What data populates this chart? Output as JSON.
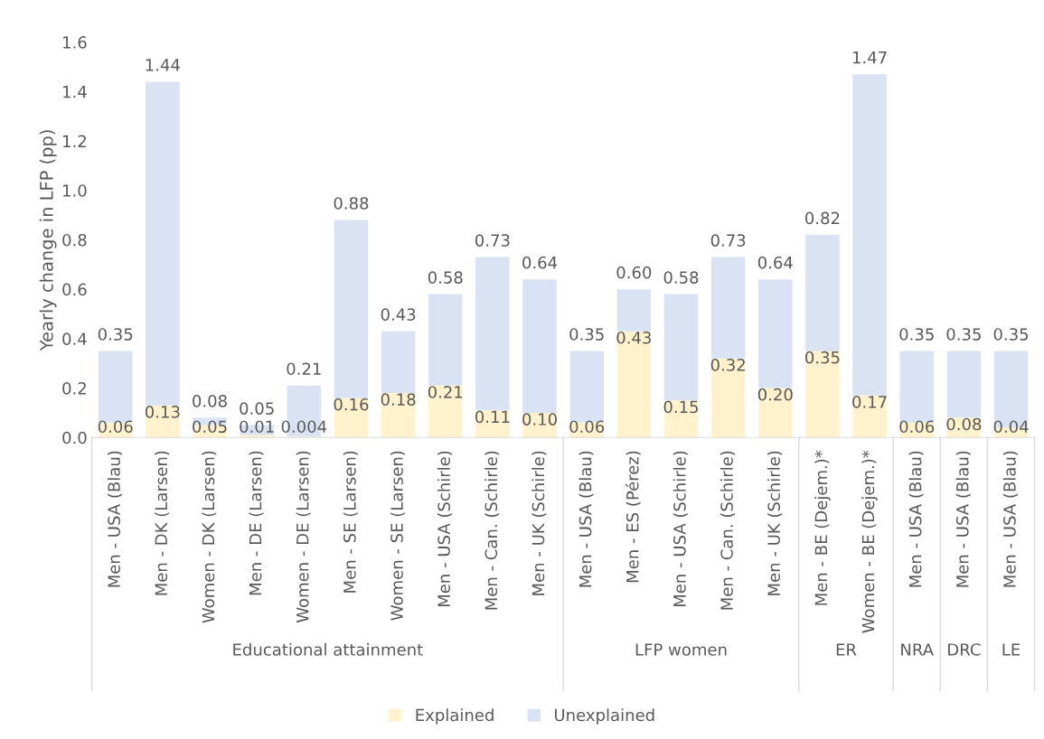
{
  "chart_data": {
    "type": "bar",
    "stacked": true,
    "ylabel": "Yearly change in LFP (pp)",
    "categories": [
      "Men - USA (Blau)",
      "Men - DK (Larsen)",
      "Women - DK (Larsen)",
      "Men - DE (Larsen)",
      "Women - DE (Larsen)",
      "Men - SE (Larsen)",
      "Women - SE (Larsen)",
      "Men - USA (Schirle)",
      "Men - Can. (Schirle)",
      "Men - UK (Schirle)",
      "Men - USA (Blau)",
      "Men - ES (Pérez)",
      "Men - USA (Schirle)",
      "Men - Can. (Schirle)",
      "Men - UK (Schirle)",
      "Men - BE (Dejem.)*",
      "Women - BE (Dejem.)*",
      "Men - USA (Blau)",
      "Men - USA (Blau)",
      "Men - USA (Blau)"
    ],
    "series": [
      {
        "name": "Explained",
        "color": "#fff2cc",
        "values": [
          0.06,
          0.13,
          0.05,
          0.01,
          0.004,
          0.16,
          0.18,
          0.21,
          0.11,
          0.1,
          0.06,
          0.43,
          0.15,
          0.32,
          0.2,
          0.35,
          0.17,
          0.06,
          0.08,
          0.04
        ],
        "value_labels": [
          "0.06",
          "0.13",
          "0.05",
          "0.01",
          "0.004",
          "0.16",
          "0.18",
          "0.21",
          "0.11",
          "0.10",
          "0.06",
          "0.43",
          "0.15",
          "0.32",
          "0.20",
          "0.35",
          "0.17",
          "0.06",
          "0.08",
          "0.04"
        ]
      },
      {
        "name": "Unexplained",
        "color": "#dae3f3",
        "values": [
          0.29,
          1.31,
          0.03,
          0.04,
          0.206,
          0.72,
          0.25,
          0.37,
          0.62,
          0.54,
          0.29,
          0.17,
          0.43,
          0.41,
          0.44,
          0.47,
          1.3,
          0.29,
          0.27,
          0.31
        ]
      }
    ],
    "totals": [
      "0.35",
      "1.44",
      "0.08",
      "0.05",
      "0.21",
      "0.88",
      "0.43",
      "0.58",
      "0.73",
      "0.64",
      "0.35",
      "0.60",
      "0.58",
      "0.73",
      "0.64",
      "0.82",
      "1.47",
      "0.35",
      "0.35",
      "0.35"
    ],
    "annotations": [
      "Educational attainment",
      "LFP women",
      "ER",
      "NRA",
      "DRC",
      "LE"
    ],
    "ylim": [
      0,
      1.6
    ],
    "yticks": [
      {
        "value": 0,
        "label": "0.0"
      },
      {
        "value": 0.2,
        "label": "0.2"
      },
      {
        "value": 0.4,
        "label": "0.4"
      },
      {
        "value": 0.6,
        "label": "0.6"
      },
      {
        "value": 0.8,
        "label": "0.8"
      },
      {
        "value": 1.0,
        "label": "1.0"
      },
      {
        "value": 1.2,
        "label": "1.2"
      },
      {
        "value": 1.4,
        "label": "1.4"
      },
      {
        "value": 1.6,
        "label": "1.6"
      }
    ],
    "grid": false,
    "legend": "bottom"
  }
}
